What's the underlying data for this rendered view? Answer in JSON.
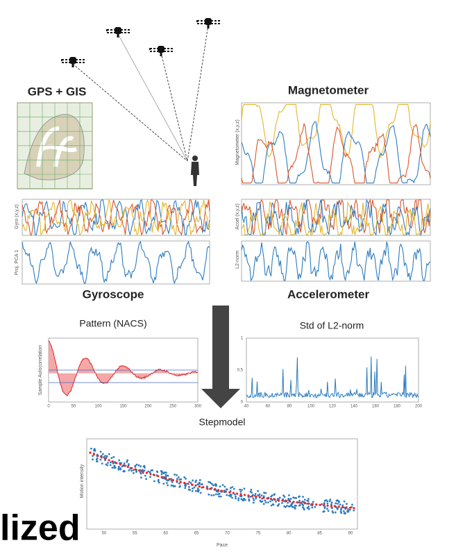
{
  "titles": {
    "gps": "GPS + GIS",
    "magnetometer": "Magnetometer",
    "gyroscope": "Gyroscope",
    "accelerometer": "Accelerometer",
    "pattern": "Pattern (NACS)",
    "std": "Std of L2-norm",
    "stepmodel": "Stepmodel"
  },
  "axis_labels": {
    "magnetometer": "Magnetometer (x,y,z)",
    "gyro": "Gyro (x,y,z)",
    "pca": "Proj. PCA 1",
    "accel": "Accel (x,y,z)",
    "l2": "L2-norm",
    "autocorr": "Sample Autocorrelation",
    "motion": "Motion intensity",
    "pace": "Pace"
  },
  "ticks": {
    "pattern_x": [
      "0",
      "50",
      "100",
      "150",
      "200",
      "250",
      "300"
    ],
    "std_x": [
      "40",
      "60",
      "80",
      "100",
      "120",
      "140",
      "160",
      "180",
      "200"
    ],
    "std_y": [
      "0",
      "0.5",
      "1"
    ],
    "step_x": [
      "50",
      "55",
      "60",
      "65",
      "70",
      "75",
      "80",
      "85",
      "90"
    ]
  },
  "overlay_text": "lized"
}
